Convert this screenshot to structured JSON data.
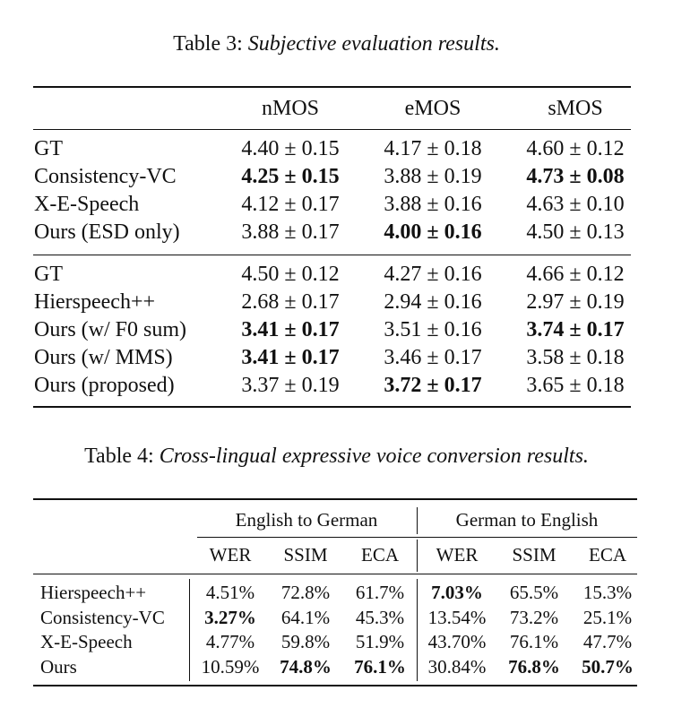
{
  "table3": {
    "caption_label": "Table 3:",
    "caption_text": "Subjective evaluation results.",
    "headers": [
      "nMOS",
      "eMOS",
      "sMOS"
    ],
    "groups": [
      [
        {
          "name": "GT",
          "cells": [
            "4.40 ± 0.15",
            "4.17 ± 0.18",
            "4.60 ± 0.12"
          ],
          "bold": [
            false,
            false,
            false
          ]
        },
        {
          "name": "Consistency-VC",
          "cells": [
            "4.25 ± 0.15",
            "3.88 ± 0.19",
            "4.73 ± 0.08"
          ],
          "bold": [
            true,
            false,
            true
          ]
        },
        {
          "name": "X-E-Speech",
          "cells": [
            "4.12 ± 0.17",
            "3.88 ± 0.16",
            "4.63 ± 0.10"
          ],
          "bold": [
            false,
            false,
            false
          ]
        },
        {
          "name": "Ours (ESD only)",
          "cells": [
            "3.88 ± 0.17",
            "4.00 ± 0.16",
            "4.50 ± 0.13"
          ],
          "bold": [
            false,
            true,
            false
          ]
        }
      ],
      [
        {
          "name": "GT",
          "cells": [
            "4.50 ± 0.12",
            "4.27 ± 0.16",
            "4.66 ± 0.12"
          ],
          "bold": [
            false,
            false,
            false
          ]
        },
        {
          "name": "Hierspeech++",
          "cells": [
            "2.68 ± 0.17",
            "2.94 ± 0.16",
            "2.97 ± 0.19"
          ],
          "bold": [
            false,
            false,
            false
          ]
        },
        {
          "name": "Ours (w/ F0 sum)",
          "cells": [
            "3.41 ± 0.17",
            "3.51 ± 0.16",
            "3.74 ± 0.17"
          ],
          "bold": [
            true,
            false,
            true
          ]
        },
        {
          "name": "Ours (w/ MMS)",
          "cells": [
            "3.41 ± 0.17",
            "3.46 ± 0.17",
            "3.58 ± 0.18"
          ],
          "bold": [
            true,
            false,
            false
          ]
        },
        {
          "name": "Ours (proposed)",
          "cells": [
            "3.37 ± 0.19",
            "3.72 ± 0.17",
            "3.65 ± 0.18"
          ],
          "bold": [
            false,
            true,
            false
          ]
        }
      ]
    ]
  },
  "table4": {
    "caption_label": "Table 4:",
    "caption_text": "Cross-lingual expressive voice conversion results.",
    "group_headers": [
      "English to German",
      "German to English"
    ],
    "sub_headers": [
      "WER",
      "SSIM",
      "ECA",
      "WER",
      "SSIM",
      "ECA"
    ],
    "rows": [
      {
        "name": "Hierspeech++",
        "cells": [
          "4.51%",
          "72.8%",
          "61.7%",
          "7.03%",
          "65.5%",
          "15.3%"
        ],
        "bold": [
          false,
          false,
          false,
          true,
          false,
          false
        ]
      },
      {
        "name": "Consistency-VC",
        "cells": [
          "3.27%",
          "64.1%",
          "45.3%",
          "13.54%",
          "73.2%",
          "25.1%"
        ],
        "bold": [
          true,
          false,
          false,
          false,
          false,
          false
        ]
      },
      {
        "name": "X-E-Speech",
        "cells": [
          "4.77%",
          "59.8%",
          "51.9%",
          "43.70%",
          "76.1%",
          "47.7%"
        ],
        "bold": [
          false,
          false,
          false,
          false,
          false,
          false
        ]
      },
      {
        "name": "Ours",
        "cells": [
          "10.59%",
          "74.8%",
          "76.1%",
          "30.84%",
          "76.8%",
          "50.7%"
        ],
        "bold": [
          false,
          true,
          true,
          false,
          true,
          true
        ]
      }
    ]
  }
}
